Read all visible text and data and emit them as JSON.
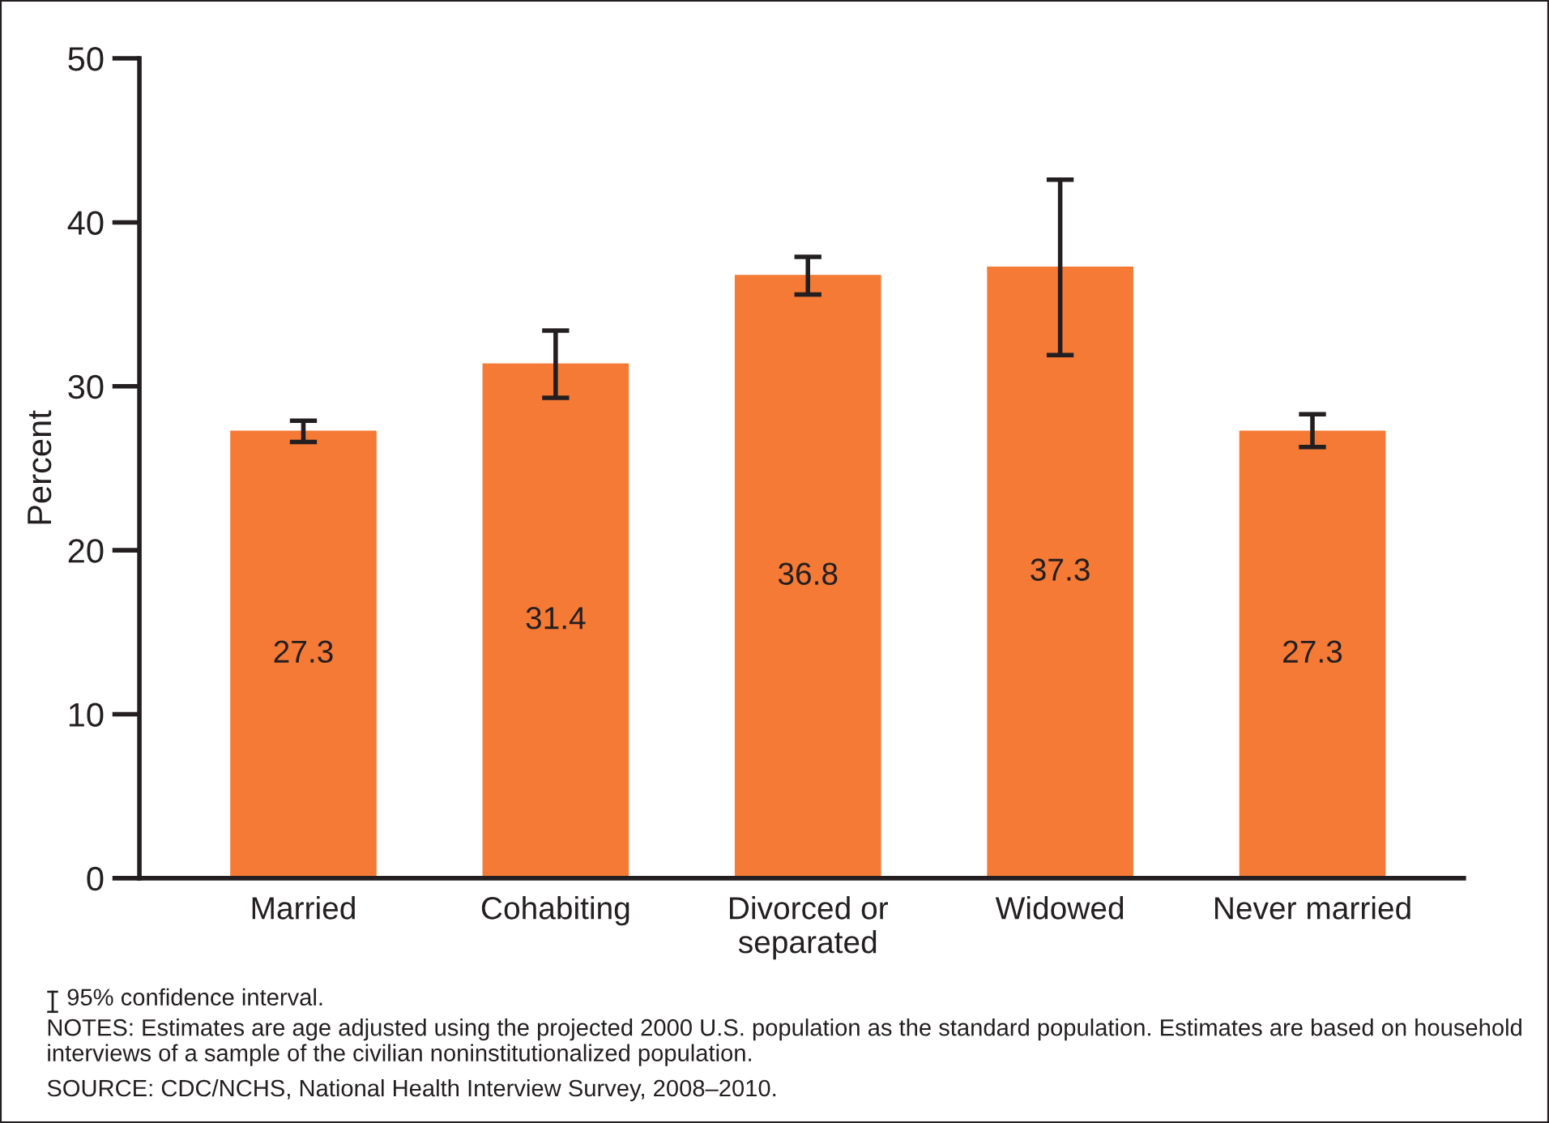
{
  "chart_data": {
    "type": "bar",
    "ylabel": "Percent",
    "categories": [
      "Married",
      "Cohabiting",
      "Divorced or\nseparated",
      "Widowed",
      "Never married"
    ],
    "values": [
      27.3,
      31.4,
      36.8,
      37.3,
      27.3
    ],
    "errors": [
      [
        26.6,
        27.9
      ],
      [
        29.3,
        33.4
      ],
      [
        35.6,
        37.9
      ],
      [
        31.9,
        42.6
      ],
      [
        26.3,
        28.3
      ]
    ],
    "color": "#f47a36",
    "data_labels": true,
    "ylim": [
      0,
      50
    ],
    "yticks": [
      0,
      10,
      20,
      30,
      40,
      50
    ],
    "grid": false,
    "annotations": [
      "95% confidence interval.",
      "NOTES: Estimates are age adjusted using the projected 2000 U.S. population as the standard population. Estimates are based on household interviews of a sample of the civilian noninstitutionalized population.",
      "SOURCE: CDC/NCHS, National Health Interview Survey, 2008–2010."
    ]
  }
}
